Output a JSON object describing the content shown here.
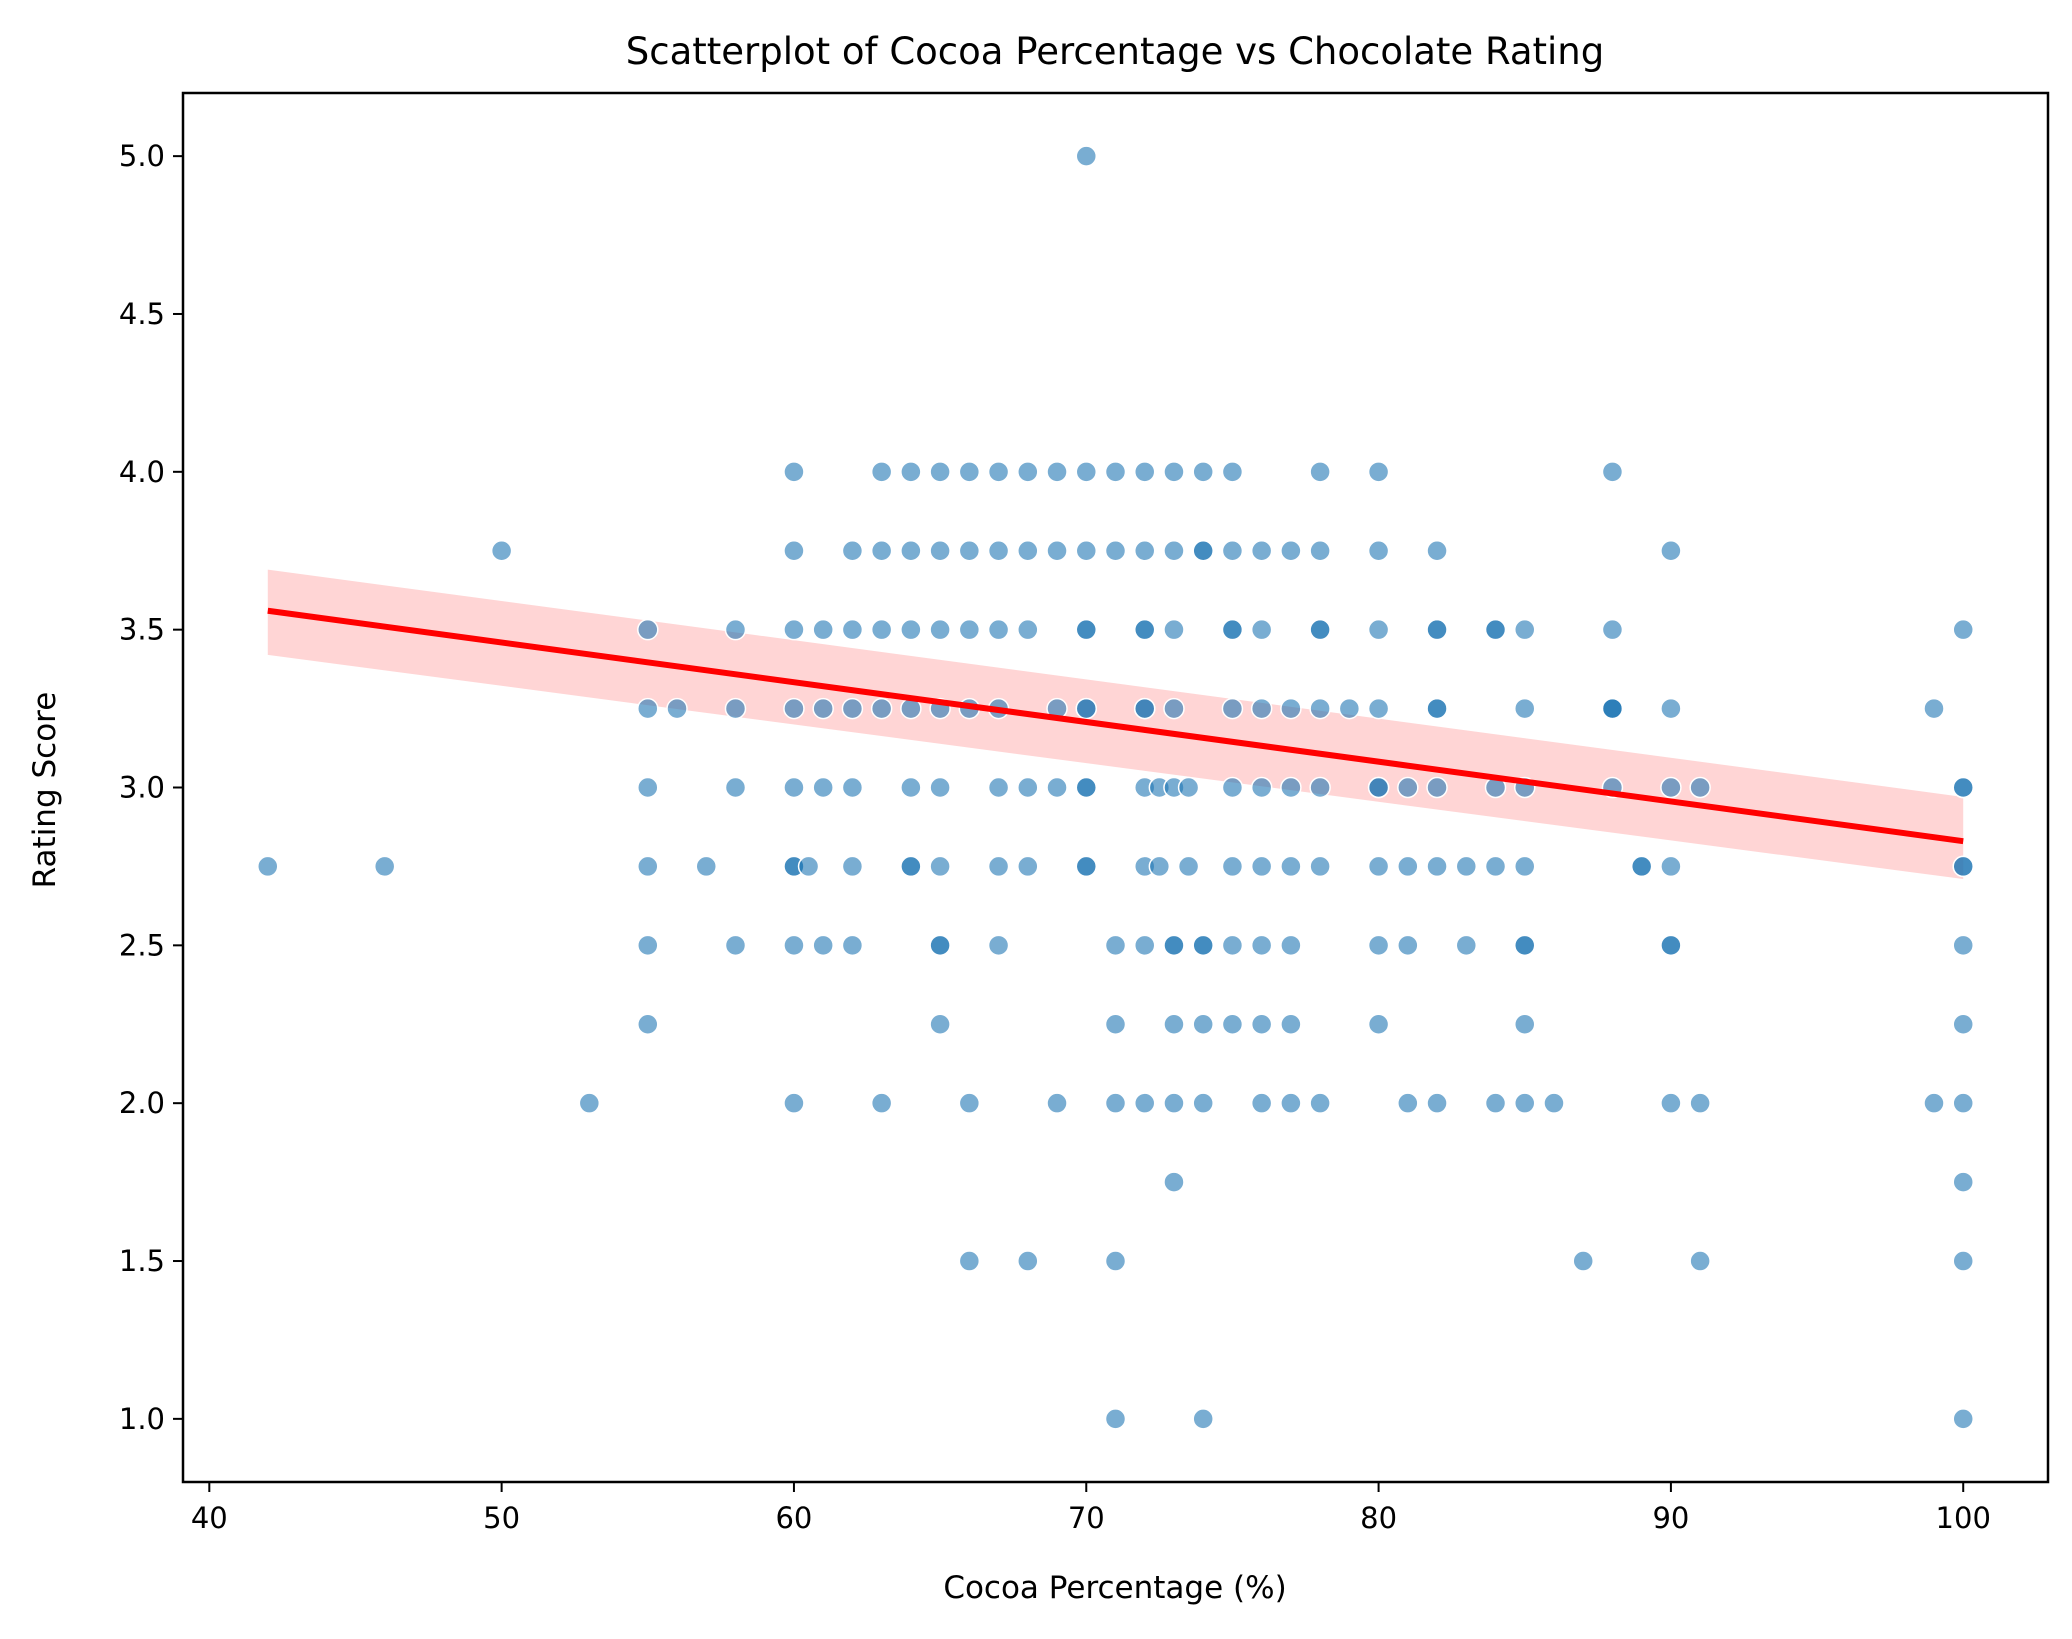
{
  "chart_data": {
    "type": "scatter",
    "title": "Scatterplot of Cocoa Percentage vs Chocolate Rating",
    "xlabel": "Cocoa Percentage (%)",
    "ylabel": "Rating Score",
    "xlim": [
      39.1,
      102.9
    ],
    "ylim": [
      0.8,
      5.2
    ],
    "x_ticks": [
      40,
      50,
      60,
      70,
      80,
      90,
      100
    ],
    "y_ticks": [
      1.0,
      1.5,
      2.0,
      2.5,
      3.0,
      3.5,
      4.0,
      4.5,
      5.0
    ],
    "x_tick_labels": [
      "40",
      "50",
      "60",
      "70",
      "80",
      "90",
      "100"
    ],
    "y_tick_labels": [
      "1.0",
      "1.5",
      "2.0",
      "2.5",
      "3.0",
      "3.5",
      "4.0",
      "4.5",
      "5.0"
    ],
    "grid": false,
    "legend": "none",
    "colors": {
      "points": "#1f77b4",
      "point_edge": "#ffffff",
      "regression_line": "#ff0000",
      "confidence_band": "#ffb3b3"
    },
    "series": [
      {
        "kind": "points",
        "x": [
          42,
          46,
          50,
          53,
          55,
          55,
          55,
          55,
          55,
          55,
          56,
          57,
          58,
          58,
          58,
          58,
          60,
          60,
          60,
          60,
          60,
          60,
          60,
          60,
          60,
          60.5,
          61,
          61,
          61,
          61,
          62,
          62,
          62,
          62,
          62,
          62,
          63,
          63,
          63,
          63,
          63,
          64,
          64,
          64,
          64,
          64,
          64,
          64,
          65,
          65,
          65,
          65,
          65,
          65,
          65,
          65,
          65,
          66,
          66,
          66,
          66,
          66,
          66,
          67,
          67,
          67,
          67,
          67,
          67,
          67,
          68,
          68,
          68,
          68,
          68,
          68,
          69,
          69,
          69,
          69,
          69,
          70,
          70,
          70,
          70,
          70,
          70,
          70,
          70,
          70,
          70,
          70,
          71,
          71,
          71,
          71,
          71,
          71,
          71,
          72,
          72,
          72,
          72,
          72,
          72,
          72,
          72,
          72,
          72,
          72.5,
          72.5,
          73,
          73,
          73,
          73,
          73,
          73,
          73,
          73,
          73,
          73,
          73.5,
          73.5,
          74,
          74,
          74,
          74,
          74,
          74,
          74,
          74,
          75,
          75,
          75,
          75,
          75,
          75,
          75,
          75,
          75,
          76,
          76,
          76,
          76,
          76,
          76,
          76,
          76,
          77,
          77,
          77,
          77,
          77,
          77,
          77,
          78,
          78,
          78,
          78,
          78,
          78,
          78,
          78,
          79,
          80,
          80,
          80,
          80,
          80,
          80,
          80,
          80,
          80,
          81,
          81,
          81,
          81,
          82,
          82,
          82,
          82,
          82,
          82,
          82,
          82,
          83,
          83,
          84,
          84,
          84,
          84,
          84,
          85,
          85,
          85,
          85,
          85,
          85,
          85,
          85,
          86,
          87,
          88,
          88,
          88,
          88,
          88,
          88,
          89,
          89,
          90,
          90,
          90,
          90,
          90,
          90,
          90,
          91,
          91,
          91,
          99,
          99,
          100,
          100,
          100,
          100,
          100,
          100,
          100,
          100,
          100,
          100,
          100
        ],
        "y": [
          2.75,
          2.75,
          3.75,
          2.0,
          3.5,
          3.25,
          3.0,
          2.75,
          2.5,
          2.25,
          3.25,
          2.75,
          3.5,
          3.25,
          3.0,
          2.5,
          4.0,
          3.75,
          3.5,
          3.25,
          3.0,
          2.75,
          2.5,
          2.0,
          2.75,
          2.75,
          3.5,
          3.25,
          3.0,
          2.5,
          3.75,
          3.5,
          3.25,
          3.0,
          2.75,
          2.5,
          2.0,
          4.0,
          3.75,
          3.5,
          3.25,
          2.75,
          4.0,
          3.75,
          3.5,
          3.25,
          3.0,
          2.75,
          2.5,
          4.0,
          3.75,
          3.5,
          3.25,
          3.0,
          2.75,
          2.5,
          2.25,
          2.0,
          1.5,
          4.0,
          3.75,
          3.5,
          3.25,
          3.0,
          2.75,
          2.5,
          4.0,
          3.75,
          3.5,
          3.25,
          3.0,
          2.75,
          1.5,
          4.0,
          3.75,
          3.5,
          3.25,
          3.0,
          2.0,
          4.0,
          3.75,
          3.5,
          3.25,
          3.0,
          2.75,
          5.0,
          4.0,
          3.75,
          3.5,
          3.25,
          3.0,
          2.75,
          2.5,
          2.25,
          2.0,
          1.5,
          1.0,
          4.0,
          3.75,
          3.5,
          3.25,
          3.0,
          2.75,
          2.5,
          2.0,
          4.0,
          3.75,
          3.5,
          3.25,
          3.0,
          2.75,
          2.5,
          2.25,
          2.0,
          1.75,
          3.0,
          2.5,
          4.0,
          3.75,
          3.5,
          3.25,
          3.0,
          2.75,
          2.5,
          2.25,
          2.0,
          1.0,
          3.75,
          2.5,
          4.0,
          3.75,
          3.5,
          3.25,
          3.0,
          2.75,
          2.5,
          2.25,
          4.0,
          3.75,
          3.5,
          3.25,
          3.0,
          2.75,
          2.5,
          2.25,
          2.0,
          3.75,
          3.5,
          3.25,
          3.0,
          2.75,
          2.5,
          2.25,
          2.0,
          3.75,
          3.5,
          3.25,
          3.0,
          2.75,
          2.0,
          4.0,
          3.75,
          3.5,
          3.25,
          3.0,
          2.75,
          2.5,
          2.25,
          3.0,
          4.0,
          3.75,
          3.5,
          3.25,
          3.0,
          2.75,
          2.5,
          2.0,
          3.5,
          3.25,
          2.75,
          2.0,
          3.75,
          3.5,
          3.25,
          3.0,
          2.75,
          2.5,
          2.0,
          3.5,
          2.75,
          3.5,
          3.0,
          2.5,
          2.25,
          2.0,
          3.5,
          3.25,
          3.0,
          2.75,
          2.5,
          2.0,
          1.5,
          3.25,
          3.25,
          4.0,
          3.5,
          3.25,
          3.0,
          2.75,
          2.75,
          2.5,
          3.75,
          3.25,
          3.0,
          2.75,
          2.5,
          2.0,
          3.0,
          2.0,
          1.5,
          3.25,
          2.0,
          3.5,
          3.0,
          2.75,
          2.5,
          2.25,
          2.0,
          1.75,
          1.5,
          1.0,
          3.0,
          2.75
        ]
      },
      {
        "kind": "regression",
        "x": [
          42,
          100
        ],
        "y": [
          3.56,
          2.83
        ]
      },
      {
        "kind": "confidence_band",
        "x": [
          42,
          100
        ],
        "y_upper": [
          3.69,
          2.97
        ],
        "y_lower": [
          3.42,
          2.71
        ]
      }
    ]
  }
}
